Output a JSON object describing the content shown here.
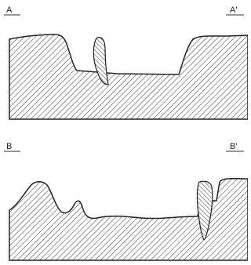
{
  "sections": [
    {
      "label_left": "A",
      "label_right": "A′"
    },
    {
      "label_left": "B",
      "label_right": "B′"
    }
  ]
}
